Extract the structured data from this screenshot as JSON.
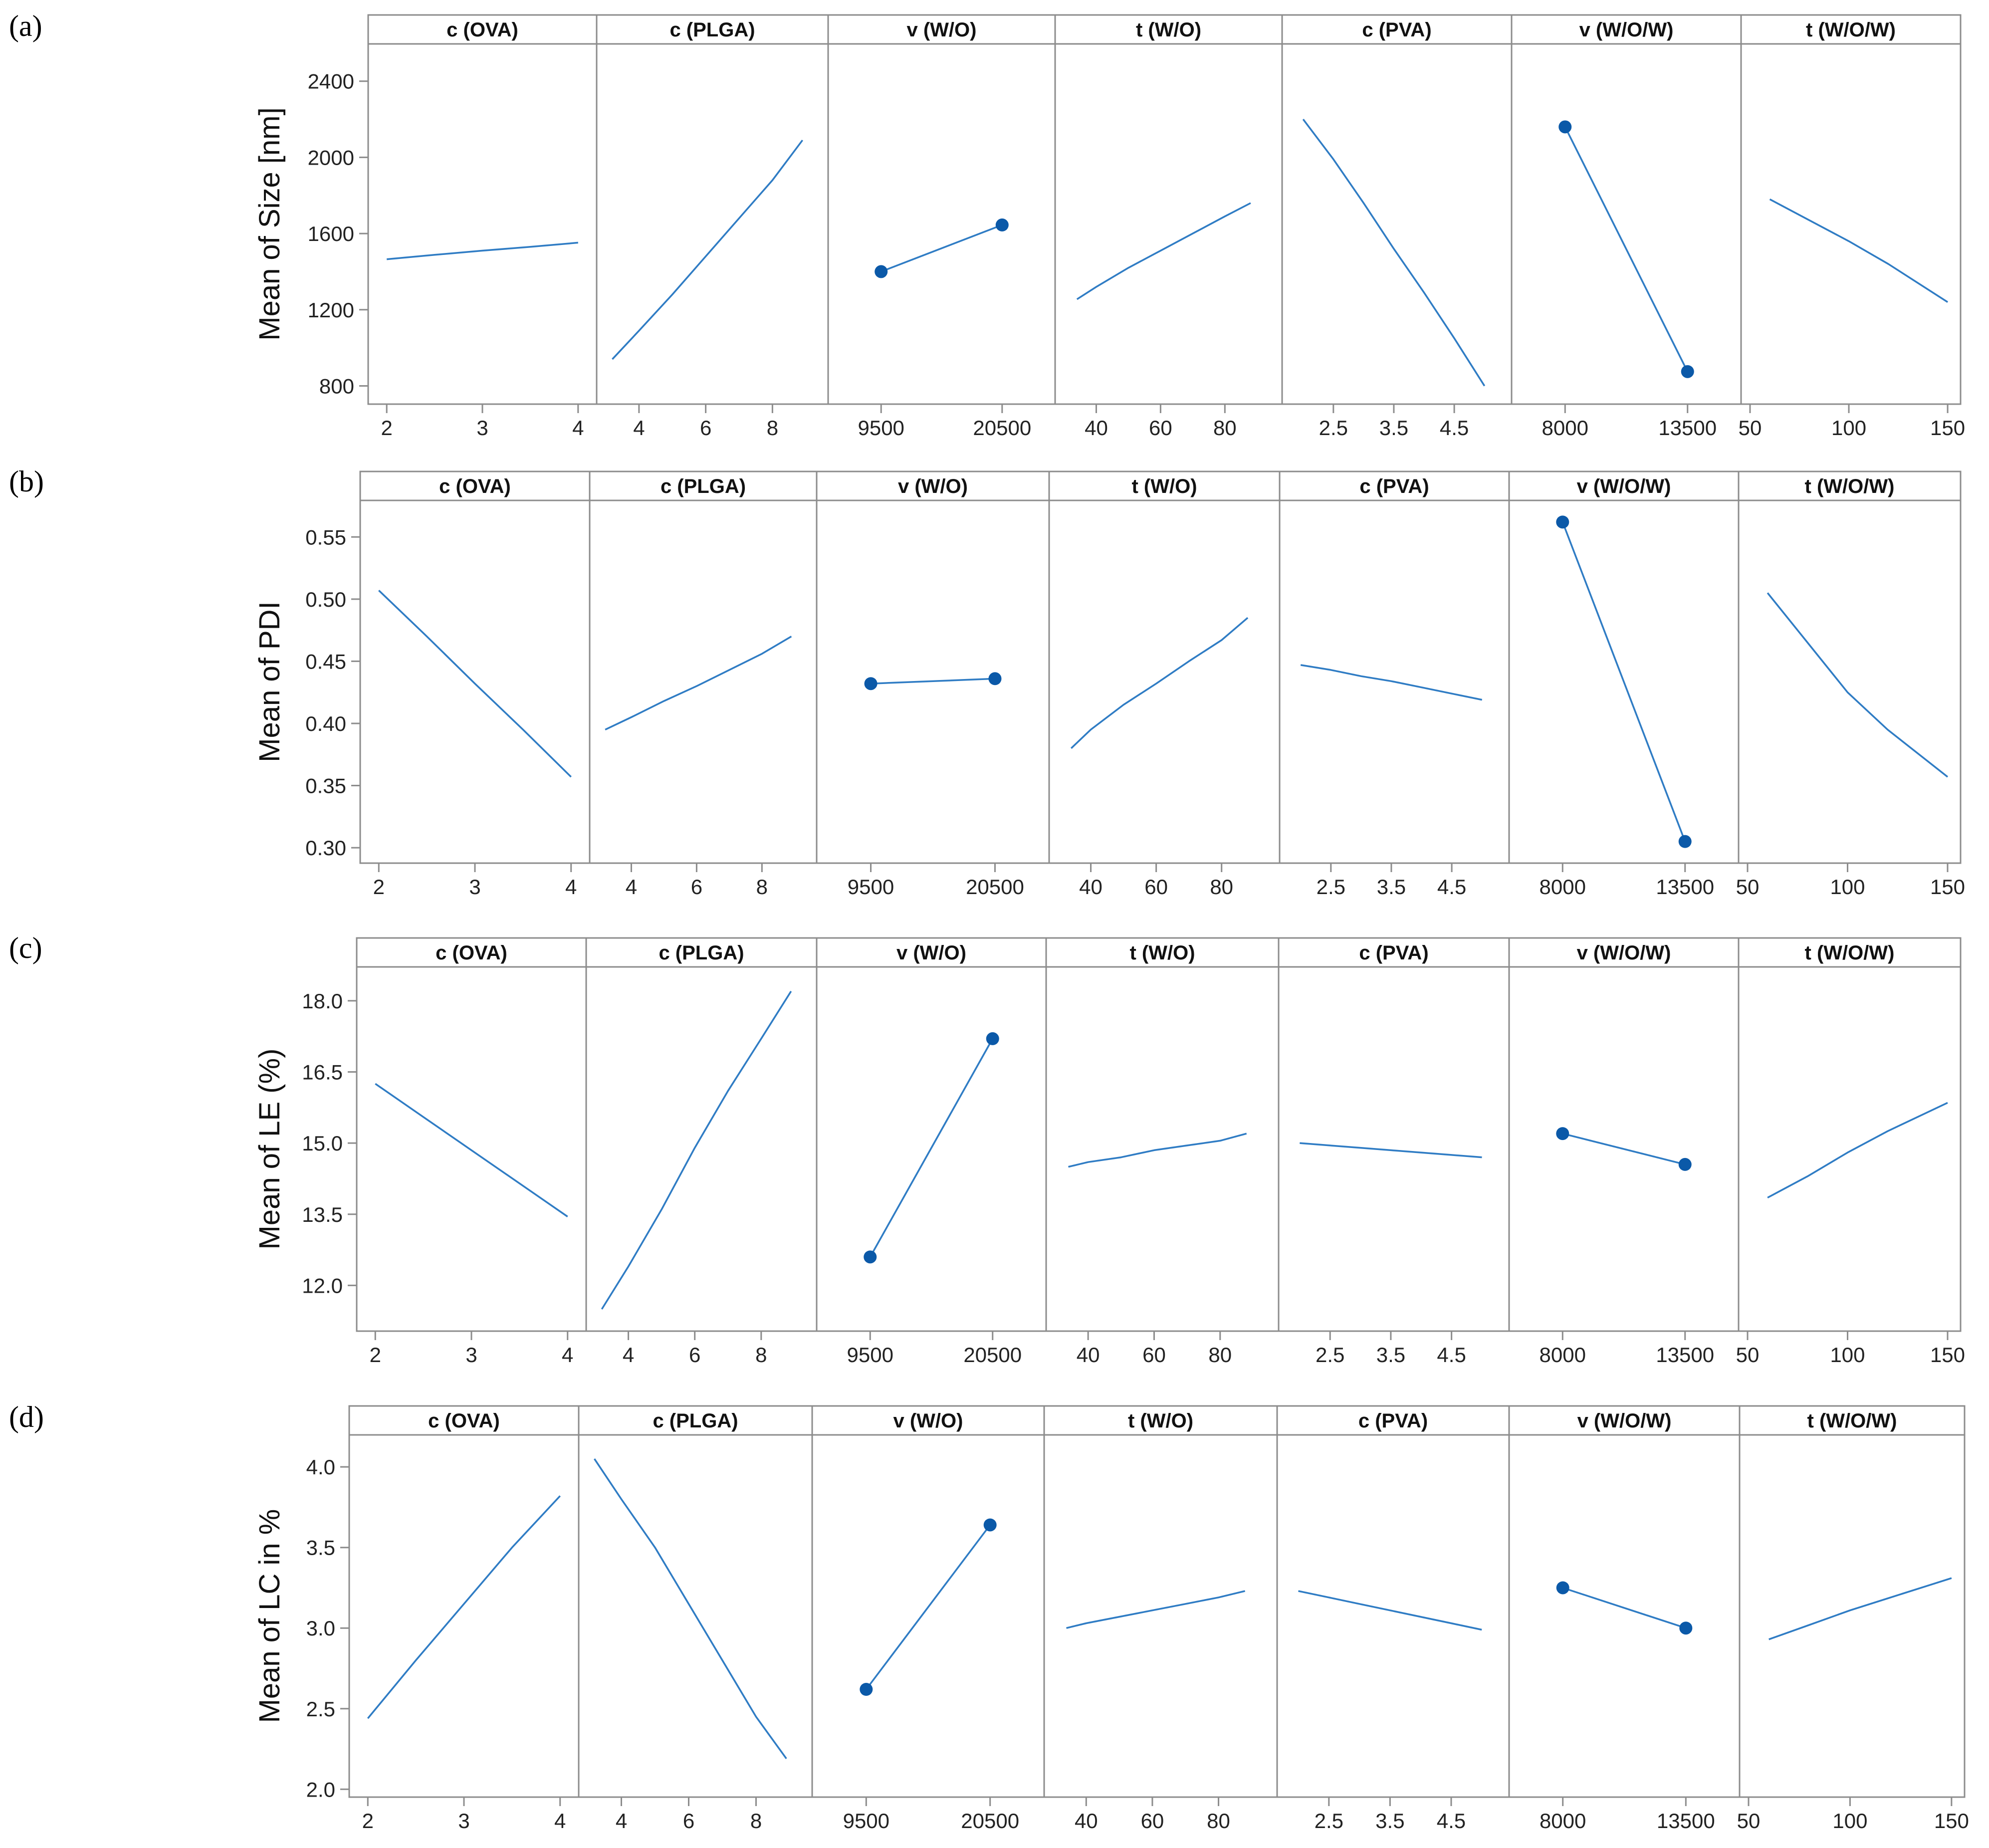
{
  "figure": {
    "description_panels": [
      "(a)",
      "(b)",
      "(c)",
      "(d)"
    ]
  },
  "colors": {
    "line": "#2f7cc4",
    "point": "#0b59a8",
    "frame": "#8c8c8c",
    "text": "#222222"
  },
  "chart_data": [
    {
      "panel_label": "(a)",
      "type": "line",
      "ylabel": "Mean of Size [nm]",
      "ylim": [
        720,
        2580
      ],
      "yticks": [
        800,
        1200,
        1600,
        2000,
        2400
      ],
      "ytick_labels": [
        "800",
        "1200",
        "1600",
        "2000",
        "2400"
      ],
      "subplots": [
        {
          "title": "c (OVA)",
          "xlim": [
            1.9,
            4.1
          ],
          "xticks": [
            2,
            3,
            4
          ],
          "xtick_labels": [
            "2",
            "3",
            "4"
          ],
          "x": [
            2,
            2.5,
            3,
            3.5,
            4
          ],
          "y": [
            1465,
            1488,
            1510,
            1530,
            1552
          ],
          "points": false
        },
        {
          "title": "c (PLGA)",
          "xlim": [
            3.0,
            9.4
          ],
          "xticks": [
            4,
            6,
            8
          ],
          "xtick_labels": [
            "4",
            "6",
            "8"
          ],
          "x": [
            3.2,
            4,
            5,
            6,
            7,
            8,
            8.9
          ],
          "y": [
            940,
            1090,
            1280,
            1480,
            1680,
            1880,
            2090
          ],
          "points": false
        },
        {
          "title": "v (W/O)",
          "xlim": [
            5500,
            24500
          ],
          "xticks": [
            9500,
            20500
          ],
          "xtick_labels": [
            "9500",
            "20500"
          ],
          "x": [
            9500,
            20500
          ],
          "y": [
            1400,
            1645
          ],
          "points": true
        },
        {
          "title": "t (W/O)",
          "xlim": [
            30,
            95
          ],
          "xticks": [
            40,
            60,
            80
          ],
          "xtick_labels": [
            "40",
            "60",
            "80"
          ],
          "x": [
            34,
            40,
            50,
            60,
            70,
            80,
            88
          ],
          "y": [
            1255,
            1320,
            1420,
            1510,
            1600,
            1690,
            1760
          ],
          "points": false
        },
        {
          "title": "c (PVA)",
          "xlim": [
            1.8,
            5.3
          ],
          "xticks": [
            2.5,
            3.5,
            4.5
          ],
          "xtick_labels": [
            "2.5",
            "3.5",
            "4.5"
          ],
          "x": [
            2,
            2.5,
            3,
            3.5,
            4,
            4.5,
            5
          ],
          "y": [
            2200,
            1990,
            1760,
            1520,
            1290,
            1050,
            800
          ],
          "points": false
        },
        {
          "title": "v (W/O/W)",
          "xlim": [
            6000,
            15500
          ],
          "xticks": [
            8000,
            13500
          ],
          "xtick_labels": [
            "8000",
            "13500"
          ],
          "x": [
            8000,
            13500
          ],
          "y": [
            2160,
            875
          ],
          "points": true
        },
        {
          "title": "t (W/O/W)",
          "xlim": [
            50,
            152
          ],
          "xticks": [
            50,
            100,
            150
          ],
          "xtick_labels": [
            "50",
            "100",
            "150"
          ],
          "x": [
            60,
            80,
            100,
            120,
            150
          ],
          "y": [
            1780,
            1670,
            1560,
            1440,
            1240
          ],
          "points": false
        }
      ]
    },
    {
      "panel_label": "(b)",
      "type": "line",
      "ylabel": "Mean of PDI",
      "ylim": [
        0.29,
        0.577
      ],
      "yticks": [
        0.3,
        0.35,
        0.4,
        0.45,
        0.5,
        0.55
      ],
      "ytick_labels": [
        "0.30",
        "0.35",
        "0.40",
        "0.45",
        "0.50",
        "0.55"
      ],
      "subplots": [
        {
          "title": "c (OVA)",
          "xlim": [
            1.9,
            4.1
          ],
          "xticks": [
            2,
            3,
            4
          ],
          "xtick_labels": [
            "2",
            "3",
            "4"
          ],
          "x": [
            2,
            2.5,
            3,
            3.5,
            4
          ],
          "y": [
            0.507,
            0.47,
            0.432,
            0.395,
            0.357
          ],
          "points": false
        },
        {
          "title": "c (PLGA)",
          "xlim": [
            3.0,
            9.4
          ],
          "xticks": [
            4,
            6,
            8
          ],
          "xtick_labels": [
            "4",
            "6",
            "8"
          ],
          "x": [
            3.2,
            4,
            5,
            6,
            7,
            8,
            8.9
          ],
          "y": [
            0.395,
            0.405,
            0.418,
            0.43,
            0.443,
            0.456,
            0.47
          ],
          "points": false
        },
        {
          "title": "v (W/O)",
          "xlim": [
            5500,
            24500
          ],
          "xticks": [
            9500,
            20500
          ],
          "xtick_labels": [
            "9500",
            "20500"
          ],
          "x": [
            9500,
            20500
          ],
          "y": [
            0.432,
            0.436
          ],
          "points": true
        },
        {
          "title": "t (W/O)",
          "xlim": [
            30,
            95
          ],
          "xticks": [
            40,
            60,
            80
          ],
          "xtick_labels": [
            "40",
            "60",
            "80"
          ],
          "x": [
            34,
            40,
            50,
            60,
            70,
            80,
            88
          ],
          "y": [
            0.38,
            0.395,
            0.415,
            0.432,
            0.45,
            0.467,
            0.485
          ],
          "points": false
        },
        {
          "title": "c (PVA)",
          "xlim": [
            1.8,
            5.3
          ],
          "xticks": [
            2.5,
            3.5,
            4.5
          ],
          "xtick_labels": [
            "2.5",
            "3.5",
            "4.5"
          ],
          "x": [
            2,
            2.5,
            3,
            3.5,
            4,
            4.5,
            5
          ],
          "y": [
            0.447,
            0.443,
            0.438,
            0.434,
            0.429,
            0.424,
            0.419
          ],
          "points": false
        },
        {
          "title": "v (W/O/W)",
          "xlim": [
            6000,
            15500
          ],
          "xticks": [
            8000,
            13500
          ],
          "xtick_labels": [
            "8000",
            "13500"
          ],
          "x": [
            8000,
            13500
          ],
          "y": [
            0.562,
            0.305
          ],
          "points": true
        },
        {
          "title": "t (W/O/W)",
          "xlim": [
            50,
            152
          ],
          "xticks": [
            50,
            100,
            150
          ],
          "xtick_labels": [
            "50",
            "100",
            "150"
          ],
          "x": [
            60,
            80,
            100,
            120,
            150
          ],
          "y": [
            0.505,
            0.465,
            0.425,
            0.395,
            0.357
          ],
          "points": false
        }
      ]
    },
    {
      "panel_label": "(c)",
      "type": "line",
      "ylabel": "Mean of LE (%)",
      "ylim": [
        11.1,
        18.65
      ],
      "yticks": [
        12.0,
        13.5,
        15.0,
        16.5,
        18.0
      ],
      "ytick_labels": [
        "12.0",
        "13.5",
        "15.0",
        "16.5",
        "18.0"
      ],
      "subplots": [
        {
          "title": "c (OVA)",
          "xlim": [
            1.9,
            4.1
          ],
          "xticks": [
            2,
            3,
            4
          ],
          "xtick_labels": [
            "2",
            "3",
            "4"
          ],
          "x": [
            2,
            2.5,
            3,
            3.5,
            4
          ],
          "y": [
            16.25,
            15.55,
            14.85,
            14.15,
            13.45
          ],
          "points": false
        },
        {
          "title": "c (PLGA)",
          "xlim": [
            3.0,
            9.4
          ],
          "xticks": [
            4,
            6,
            8
          ],
          "xtick_labels": [
            "4",
            "6",
            "8"
          ],
          "x": [
            3.2,
            4,
            5,
            6,
            7,
            8,
            8.9
          ],
          "y": [
            11.5,
            12.4,
            13.6,
            14.9,
            16.1,
            17.2,
            18.2
          ],
          "points": false
        },
        {
          "title": "v (W/O)",
          "xlim": [
            5500,
            24500
          ],
          "xticks": [
            9500,
            20500
          ],
          "xtick_labels": [
            "9500",
            "20500"
          ],
          "x": [
            9500,
            20500
          ],
          "y": [
            12.6,
            17.2
          ],
          "points": true
        },
        {
          "title": "t (W/O)",
          "xlim": [
            30,
            95
          ],
          "xticks": [
            40,
            60,
            80
          ],
          "xtick_labels": [
            "40",
            "60",
            "80"
          ],
          "x": [
            34,
            40,
            50,
            60,
            70,
            80,
            88
          ],
          "y": [
            14.5,
            14.6,
            14.7,
            14.85,
            14.95,
            15.05,
            15.2
          ],
          "points": false
        },
        {
          "title": "c (PVA)",
          "xlim": [
            1.8,
            5.3
          ],
          "xticks": [
            2.5,
            3.5,
            4.5
          ],
          "xtick_labels": [
            "2.5",
            "3.5",
            "4.5"
          ],
          "x": [
            2,
            2.5,
            3,
            3.5,
            4,
            4.5,
            5
          ],
          "y": [
            15.0,
            14.95,
            14.9,
            14.85,
            14.8,
            14.75,
            14.7
          ],
          "points": false
        },
        {
          "title": "v (W/O/W)",
          "xlim": [
            6000,
            15500
          ],
          "xticks": [
            8000,
            13500
          ],
          "xtick_labels": [
            "8000",
            "13500"
          ],
          "x": [
            8000,
            13500
          ],
          "y": [
            15.2,
            14.55
          ],
          "points": true
        },
        {
          "title": "t (W/O/W)",
          "xlim": [
            50,
            152
          ],
          "xticks": [
            50,
            100,
            150
          ],
          "xtick_labels": [
            "50",
            "100",
            "150"
          ],
          "x": [
            60,
            80,
            100,
            120,
            150
          ],
          "y": [
            13.85,
            14.3,
            14.8,
            15.25,
            15.85
          ],
          "points": false
        }
      ]
    },
    {
      "panel_label": "(d)",
      "type": "line",
      "ylabel": "Mean of LC in %",
      "ylim": [
        1.97,
        4.18
      ],
      "yticks": [
        2.0,
        2.5,
        3.0,
        3.5,
        4.0
      ],
      "ytick_labels": [
        "2.0",
        "2.5",
        "3.0",
        "3.5",
        "4.0"
      ],
      "subplots": [
        {
          "title": "c (OVA)",
          "xlim": [
            1.9,
            4.1
          ],
          "xticks": [
            2,
            3,
            4
          ],
          "xtick_labels": [
            "2",
            "3",
            "4"
          ],
          "x": [
            2,
            2.5,
            3,
            3.5,
            4
          ],
          "y": [
            2.44,
            2.8,
            3.15,
            3.5,
            3.82
          ],
          "points": false
        },
        {
          "title": "c (PLGA)",
          "xlim": [
            3.0,
            9.4
          ],
          "xticks": [
            4,
            6,
            8
          ],
          "xtick_labels": [
            "4",
            "6",
            "8"
          ],
          "x": [
            3.2,
            4,
            5,
            6,
            7,
            8,
            8.9
          ],
          "y": [
            4.05,
            3.8,
            3.5,
            3.15,
            2.8,
            2.45,
            2.19
          ],
          "points": false
        },
        {
          "title": "v (W/O)",
          "xlim": [
            5500,
            24500
          ],
          "xticks": [
            9500,
            20500
          ],
          "xtick_labels": [
            "9500",
            "20500"
          ],
          "x": [
            9500,
            20500
          ],
          "y": [
            2.62,
            3.64
          ],
          "points": true
        },
        {
          "title": "t (W/O)",
          "xlim": [
            30,
            95
          ],
          "xticks": [
            40,
            60,
            80
          ],
          "xtick_labels": [
            "40",
            "60",
            "80"
          ],
          "x": [
            34,
            40,
            50,
            60,
            70,
            80,
            88
          ],
          "y": [
            3.0,
            3.03,
            3.07,
            3.11,
            3.15,
            3.19,
            3.23
          ],
          "points": false
        },
        {
          "title": "c (PVA)",
          "xlim": [
            1.8,
            5.3
          ],
          "xticks": [
            2.5,
            3.5,
            4.5
          ],
          "xtick_labels": [
            "2.5",
            "3.5",
            "4.5"
          ],
          "x": [
            2,
            2.5,
            3,
            3.5,
            4,
            4.5,
            5
          ],
          "y": [
            3.23,
            3.19,
            3.15,
            3.11,
            3.07,
            3.03,
            2.99
          ],
          "points": false
        },
        {
          "title": "v (W/O/W)",
          "xlim": [
            6000,
            15500
          ],
          "xticks": [
            8000,
            13500
          ],
          "xtick_labels": [
            "8000",
            "13500"
          ],
          "x": [
            8000,
            13500
          ],
          "y": [
            3.25,
            3.0
          ],
          "points": true
        },
        {
          "title": "t (W/O/W)",
          "xlim": [
            50,
            152
          ],
          "xticks": [
            50,
            100,
            150
          ],
          "xtick_labels": [
            "50",
            "100",
            "150"
          ],
          "x": [
            60,
            80,
            100,
            120,
            150
          ],
          "y": [
            2.93,
            3.02,
            3.11,
            3.19,
            3.31
          ],
          "points": false
        }
      ]
    }
  ]
}
